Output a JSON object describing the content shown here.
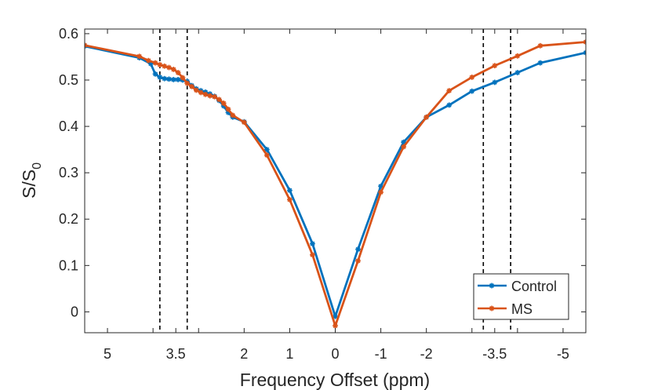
{
  "chart_data": {
    "type": "line",
    "title": "",
    "xlabel": "Frequency Offset (ppm)",
    "ylabel_main": "S/S",
    "ylabel_sub": "0",
    "x_reversed": true,
    "xlim": [
      5.5,
      -5.5
    ],
    "ylim": [
      -0.045,
      0.61
    ],
    "x_ticks": [
      5,
      4,
      3.5,
      3,
      2,
      1,
      0,
      -1,
      -2,
      -3,
      -3.5,
      -4,
      -5
    ],
    "x_tick_labels": [
      "5",
      "",
      "3.5",
      "",
      "2",
      "1",
      "0",
      "-1",
      "-2",
      "",
      "-3.5",
      "",
      "-5"
    ],
    "y_ticks": [
      0,
      0.1,
      0.2,
      0.3,
      0.4,
      0.5,
      0.6
    ],
    "y_tick_labels": [
      "0",
      "0.1",
      "0.2",
      "0.3",
      "0.4",
      "0.5",
      "0.6"
    ],
    "vlines": [
      3.85,
      3.25,
      -3.25,
      -3.85
    ],
    "legend_position": "bottom-right",
    "series": [
      {
        "name": "Control",
        "color": "#0072BD",
        "x": [
          5.5,
          4.3,
          4.05,
          3.95,
          3.85,
          3.75,
          3.65,
          3.55,
          3.45,
          3.35,
          3.25,
          3.15,
          3.05,
          2.95,
          2.85,
          2.75,
          2.65,
          2.55,
          2.45,
          2.35,
          2.25,
          2.0,
          1.5,
          1.0,
          0.5,
          0.0,
          -0.5,
          -1.0,
          -1.5,
          -2.0,
          -2.5,
          -3.0,
          -3.5,
          -4.0,
          -4.5,
          -5.5
        ],
        "y": [
          0.573,
          0.548,
          0.535,
          0.513,
          0.506,
          0.503,
          0.502,
          0.501,
          0.501,
          0.5,
          0.497,
          0.488,
          0.481,
          0.477,
          0.474,
          0.47,
          0.465,
          0.456,
          0.444,
          0.43,
          0.42,
          0.41,
          0.35,
          0.262,
          0.147,
          -0.01,
          0.135,
          0.271,
          0.366,
          0.42,
          0.446,
          0.476,
          0.495,
          0.516,
          0.537,
          0.559
        ]
      },
      {
        "name": "MS",
        "color": "#D95319",
        "x": [
          5.5,
          4.3,
          4.1,
          3.95,
          3.85,
          3.75,
          3.65,
          3.55,
          3.45,
          3.35,
          3.25,
          3.15,
          3.05,
          2.95,
          2.85,
          2.75,
          2.65,
          2.55,
          2.45,
          2.35,
          2.25,
          2.0,
          1.5,
          1.0,
          0.5,
          0.0,
          -0.5,
          -1.0,
          -1.5,
          -2.0,
          -2.5,
          -3.0,
          -3.5,
          -4.0,
          -4.5,
          -5.5
        ],
        "y": [
          0.575,
          0.551,
          0.542,
          0.537,
          0.533,
          0.53,
          0.527,
          0.523,
          0.516,
          0.505,
          0.493,
          0.486,
          0.478,
          0.473,
          0.469,
          0.466,
          0.464,
          0.458,
          0.45,
          0.437,
          0.424,
          0.409,
          0.338,
          0.242,
          0.123,
          -0.03,
          0.11,
          0.258,
          0.356,
          0.42,
          0.477,
          0.506,
          0.531,
          0.552,
          0.574,
          0.582
        ]
      }
    ]
  }
}
